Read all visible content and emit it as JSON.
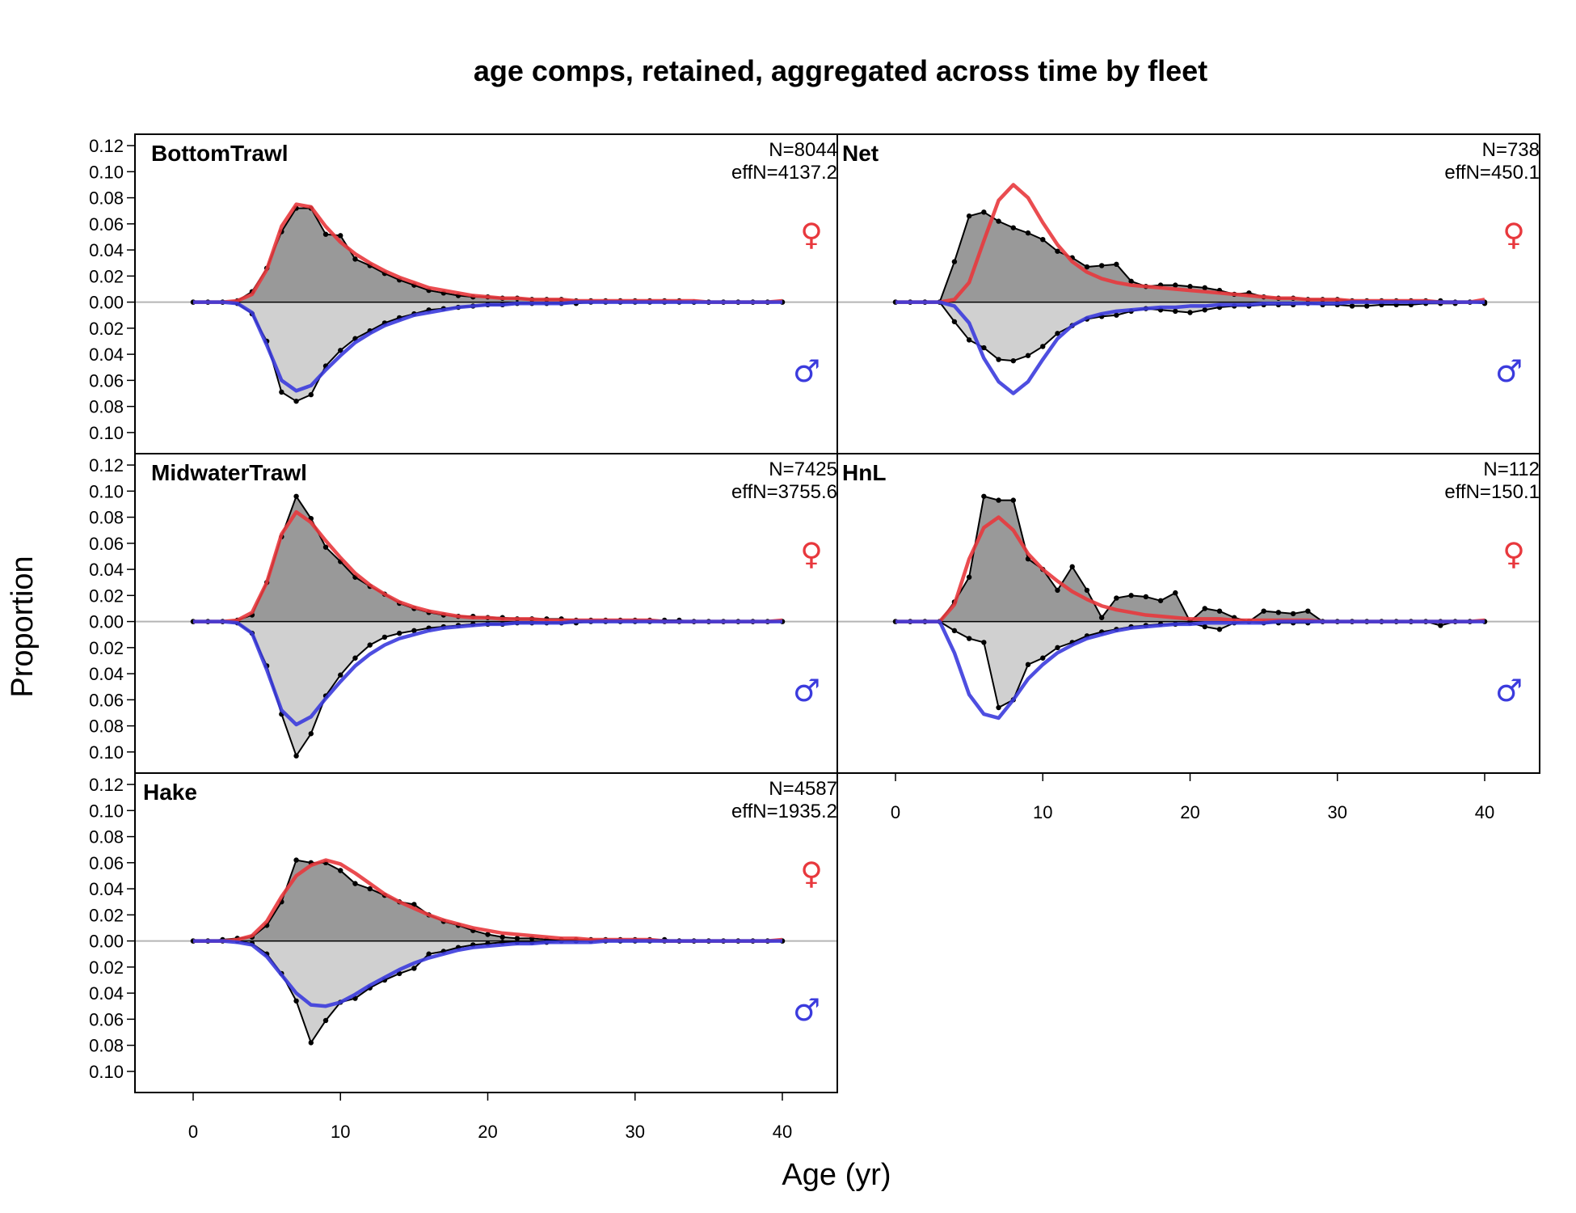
{
  "chart_data": {
    "type": "area",
    "title": "age comps, retained, aggregated across time by fleet",
    "xlabel": "Age (yr)",
    "ylabel": "Proportion",
    "xlim": [
      0,
      40
    ],
    "xticks": [
      0,
      10,
      20,
      30,
      40
    ],
    "ylim": [
      -0.11,
      0.125
    ],
    "yticks": [
      0.12,
      0.1,
      0.08,
      0.06,
      0.04,
      0.02,
      0.0,
      -0.02,
      -0.04,
      -0.06,
      -0.08,
      -0.1
    ],
    "ytick_labels": [
      "0.12",
      "0.10",
      "0.08",
      "0.06",
      "0.04",
      "0.02",
      "0.00",
      "0.02",
      "0.04",
      "0.06",
      "0.08",
      "0.10"
    ],
    "grid": false,
    "colors": {
      "female": "#e8383d",
      "male": "#3b3bdd",
      "obs_female_fill": "#999999",
      "obs_male_fill": "#d0d0d0",
      "zero_line_top": "#000000",
      "zero_line_bottom": "#b5b5b5"
    },
    "female_symbol": "♀",
    "male_symbol": "♂",
    "panels": [
      {
        "fleet": "BottomTrawl",
        "n_label": "N=8044",
        "effn_label": "effN=4137.2",
        "ages": [
          0,
          1,
          2,
          3,
          4,
          5,
          6,
          7,
          8,
          9,
          10,
          11,
          12,
          13,
          14,
          15,
          16,
          17,
          18,
          19,
          20,
          21,
          22,
          23,
          24,
          25,
          26,
          27,
          28,
          29,
          30,
          31,
          32,
          33,
          34,
          35,
          36,
          37,
          38,
          39,
          40
        ],
        "female_obs": [
          0.0,
          0.0,
          0.0,
          0.001,
          0.008,
          0.026,
          0.054,
          0.072,
          0.072,
          0.052,
          0.051,
          0.033,
          0.028,
          0.022,
          0.017,
          0.013,
          0.009,
          0.007,
          0.005,
          0.004,
          0.004,
          0.003,
          0.003,
          0.002,
          0.002,
          0.002,
          0.001,
          0.001,
          0.001,
          0.001,
          0.001,
          0.001,
          0.001,
          0.001,
          0.0,
          0.0,
          0.0,
          0.0,
          0.0,
          0.0,
          0.0
        ],
        "female_exp": [
          0.0,
          0.0,
          0.0,
          0.001,
          0.006,
          0.025,
          0.058,
          0.075,
          0.073,
          0.058,
          0.046,
          0.037,
          0.03,
          0.024,
          0.019,
          0.015,
          0.011,
          0.009,
          0.007,
          0.005,
          0.004,
          0.003,
          0.003,
          0.002,
          0.002,
          0.002,
          0.001,
          0.001,
          0.001,
          0.001,
          0.001,
          0.001,
          0.001,
          0.001,
          0.001,
          0.0,
          0.0,
          0.0,
          0.0,
          0.0,
          0.001
        ],
        "male_obs": [
          0.0,
          0.0,
          0.0,
          -0.001,
          -0.009,
          -0.03,
          -0.069,
          -0.076,
          -0.071,
          -0.049,
          -0.037,
          -0.028,
          -0.022,
          -0.016,
          -0.012,
          -0.009,
          -0.006,
          -0.005,
          -0.004,
          -0.003,
          -0.002,
          -0.002,
          -0.001,
          -0.001,
          -0.001,
          -0.001,
          -0.001,
          0.0,
          0.0,
          0.0,
          0.0,
          0.0,
          0.0,
          0.0,
          0.0,
          0.0,
          0.0,
          0.0,
          0.0,
          0.0,
          0.0
        ],
        "male_exp": [
          0.0,
          0.0,
          0.0,
          -0.001,
          -0.008,
          -0.033,
          -0.06,
          -0.068,
          -0.064,
          -0.052,
          -0.041,
          -0.031,
          -0.024,
          -0.018,
          -0.014,
          -0.01,
          -0.008,
          -0.006,
          -0.004,
          -0.003,
          -0.002,
          -0.002,
          -0.001,
          -0.001,
          -0.001,
          -0.001,
          0.0,
          0.0,
          0.0,
          0.0,
          0.0,
          0.0,
          0.0,
          0.0,
          0.0,
          0.0,
          0.0,
          0.0,
          0.0,
          0.0,
          0.0
        ]
      },
      {
        "fleet": "Net",
        "n_label": "N=738",
        "effn_label": "effN=450.1",
        "ages": [
          0,
          1,
          2,
          3,
          4,
          5,
          6,
          7,
          8,
          9,
          10,
          11,
          12,
          13,
          14,
          15,
          16,
          17,
          18,
          19,
          20,
          21,
          22,
          23,
          24,
          25,
          26,
          27,
          28,
          29,
          30,
          31,
          32,
          33,
          34,
          35,
          36,
          37,
          38,
          39,
          40
        ],
        "female_obs": [
          0.0,
          0.0,
          0.0,
          0.0,
          0.031,
          0.066,
          0.069,
          0.062,
          0.057,
          0.053,
          0.048,
          0.039,
          0.034,
          0.027,
          0.028,
          0.029,
          0.016,
          0.012,
          0.013,
          0.013,
          0.012,
          0.011,
          0.009,
          0.006,
          0.007,
          0.004,
          0.003,
          0.003,
          0.002,
          0.002,
          0.002,
          0.001,
          0.001,
          0.001,
          0.001,
          0.001,
          0.001,
          0.001,
          0.0,
          0.0,
          0.0
        ],
        "female_exp": [
          0.0,
          0.0,
          0.0,
          0.0,
          0.002,
          0.015,
          0.047,
          0.078,
          0.09,
          0.08,
          0.061,
          0.044,
          0.031,
          0.023,
          0.018,
          0.015,
          0.013,
          0.012,
          0.011,
          0.01,
          0.009,
          0.008,
          0.007,
          0.006,
          0.005,
          0.004,
          0.003,
          0.003,
          0.002,
          0.002,
          0.002,
          0.001,
          0.001,
          0.001,
          0.001,
          0.001,
          0.001,
          0.0,
          0.0,
          0.0,
          0.002
        ],
        "male_obs": [
          0.0,
          0.0,
          0.0,
          0.0,
          -0.015,
          -0.029,
          -0.035,
          -0.044,
          -0.045,
          -0.041,
          -0.034,
          -0.024,
          -0.018,
          -0.013,
          -0.011,
          -0.01,
          -0.007,
          -0.005,
          -0.006,
          -0.007,
          -0.008,
          -0.006,
          -0.004,
          -0.003,
          -0.003,
          -0.002,
          -0.002,
          -0.002,
          -0.001,
          -0.002,
          -0.002,
          -0.003,
          -0.003,
          -0.002,
          -0.002,
          -0.002,
          -0.001,
          -0.001,
          -0.001,
          0.0,
          -0.001
        ],
        "male_exp": [
          0.0,
          0.0,
          0.0,
          0.0,
          -0.003,
          -0.016,
          -0.043,
          -0.061,
          -0.07,
          -0.061,
          -0.044,
          -0.028,
          -0.018,
          -0.012,
          -0.009,
          -0.007,
          -0.006,
          -0.005,
          -0.004,
          -0.004,
          -0.003,
          -0.003,
          -0.002,
          -0.002,
          -0.002,
          -0.001,
          -0.001,
          -0.001,
          -0.001,
          -0.001,
          -0.001,
          0.0,
          0.0,
          0.0,
          0.0,
          0.0,
          0.0,
          0.0,
          0.0,
          0.0,
          0.0
        ]
      },
      {
        "fleet": "MidwaterTrawl",
        "n_label": "N=7425",
        "effn_label": "effN=3755.6",
        "ages": [
          0,
          1,
          2,
          3,
          4,
          5,
          6,
          7,
          8,
          9,
          10,
          11,
          12,
          13,
          14,
          15,
          16,
          17,
          18,
          19,
          20,
          21,
          22,
          23,
          24,
          25,
          26,
          27,
          28,
          29,
          30,
          31,
          32,
          33,
          34,
          35,
          36,
          37,
          38,
          39,
          40
        ],
        "female_obs": [
          0.0,
          0.0,
          0.0,
          0.001,
          0.005,
          0.03,
          0.065,
          0.096,
          0.079,
          0.057,
          0.046,
          0.034,
          0.027,
          0.021,
          0.014,
          0.01,
          0.007,
          0.005,
          0.004,
          0.004,
          0.003,
          0.003,
          0.002,
          0.002,
          0.002,
          0.002,
          0.001,
          0.001,
          0.001,
          0.001,
          0.001,
          0.001,
          0.001,
          0.001,
          0.0,
          0.0,
          0.0,
          0.0,
          0.0,
          0.0,
          0.0
        ],
        "female_exp": [
          0.0,
          0.0,
          0.0,
          0.001,
          0.007,
          0.03,
          0.067,
          0.084,
          0.076,
          0.062,
          0.049,
          0.037,
          0.028,
          0.021,
          0.015,
          0.011,
          0.008,
          0.006,
          0.004,
          0.003,
          0.003,
          0.002,
          0.002,
          0.002,
          0.001,
          0.001,
          0.001,
          0.001,
          0.001,
          0.001,
          0.001,
          0.001,
          0.0,
          0.0,
          0.0,
          0.0,
          0.0,
          0.0,
          0.0,
          0.0,
          0.001
        ],
        "male_obs": [
          0.0,
          0.0,
          0.0,
          -0.001,
          -0.009,
          -0.034,
          -0.071,
          -0.103,
          -0.086,
          -0.057,
          -0.041,
          -0.028,
          -0.018,
          -0.012,
          -0.009,
          -0.007,
          -0.005,
          -0.004,
          -0.003,
          -0.002,
          -0.002,
          -0.002,
          -0.001,
          -0.001,
          -0.001,
          -0.001,
          -0.001,
          0.0,
          0.0,
          0.0,
          0.0,
          0.0,
          0.0,
          0.0,
          0.0,
          0.0,
          0.0,
          0.0,
          0.0,
          0.0,
          0.0
        ],
        "male_exp": [
          0.0,
          0.0,
          0.0,
          -0.001,
          -0.009,
          -0.037,
          -0.068,
          -0.079,
          -0.073,
          -0.059,
          -0.046,
          -0.034,
          -0.025,
          -0.018,
          -0.013,
          -0.01,
          -0.007,
          -0.005,
          -0.004,
          -0.003,
          -0.002,
          -0.002,
          -0.001,
          -0.001,
          -0.001,
          -0.001,
          0.0,
          0.0,
          0.0,
          0.0,
          0.0,
          0.0,
          0.0,
          0.0,
          0.0,
          0.0,
          0.0,
          0.0,
          0.0,
          0.0,
          0.0
        ]
      },
      {
        "fleet": "HnL",
        "n_label": "N=112",
        "effn_label": "effN=150.1",
        "ages": [
          0,
          1,
          2,
          3,
          4,
          5,
          6,
          7,
          8,
          9,
          10,
          11,
          12,
          13,
          14,
          15,
          16,
          17,
          18,
          19,
          20,
          21,
          22,
          23,
          24,
          25,
          26,
          27,
          28,
          29,
          30,
          31,
          32,
          33,
          34,
          35,
          36,
          37,
          38,
          39,
          40
        ],
        "female_obs": [
          0.0,
          0.0,
          0.0,
          0.0,
          0.015,
          0.034,
          0.096,
          0.093,
          0.093,
          0.048,
          0.04,
          0.024,
          0.042,
          0.024,
          0.003,
          0.018,
          0.02,
          0.019,
          0.016,
          0.022,
          0.0,
          0.01,
          0.008,
          0.003,
          0.0,
          0.008,
          0.007,
          0.006,
          0.008,
          0.0,
          0.0,
          0.0,
          0.0,
          0.0,
          0.0,
          0.0,
          0.0,
          0.0,
          0.0,
          0.0,
          0.0
        ],
        "female_exp": [
          0.0,
          0.0,
          0.0,
          0.0,
          0.013,
          0.048,
          0.072,
          0.08,
          0.07,
          0.052,
          0.04,
          0.031,
          0.023,
          0.017,
          0.012,
          0.009,
          0.007,
          0.005,
          0.004,
          0.003,
          0.002,
          0.002,
          0.002,
          0.001,
          0.001,
          0.001,
          0.001,
          0.001,
          0.001,
          0.0,
          0.0,
          0.0,
          0.0,
          0.0,
          0.0,
          0.0,
          0.0,
          0.0,
          0.0,
          0.0,
          0.001
        ],
        "male_obs": [
          0.0,
          0.0,
          0.0,
          0.0,
          -0.007,
          -0.013,
          -0.016,
          -0.066,
          -0.06,
          -0.033,
          -0.028,
          -0.02,
          -0.016,
          -0.011,
          -0.008,
          -0.006,
          -0.004,
          -0.003,
          -0.002,
          -0.002,
          -0.001,
          -0.004,
          -0.006,
          -0.001,
          0.0,
          -0.001,
          -0.001,
          -0.001,
          -0.001,
          0.0,
          0.0,
          0.0,
          0.0,
          0.0,
          0.0,
          0.0,
          0.0,
          -0.003,
          0.0,
          0.0,
          0.0
        ],
        "male_exp": [
          0.0,
          0.0,
          0.0,
          0.0,
          -0.024,
          -0.056,
          -0.071,
          -0.074,
          -0.06,
          -0.044,
          -0.033,
          -0.024,
          -0.018,
          -0.013,
          -0.01,
          -0.007,
          -0.005,
          -0.004,
          -0.003,
          -0.002,
          -0.002,
          -0.001,
          -0.001,
          -0.001,
          -0.001,
          -0.001,
          0.0,
          0.0,
          0.0,
          0.0,
          0.0,
          0.0,
          0.0,
          0.0,
          0.0,
          0.0,
          0.0,
          0.0,
          0.0,
          0.0,
          0.0
        ]
      },
      {
        "fleet": "Hake",
        "n_label": "N=4587",
        "effn_label": "effN=1935.2",
        "ages": [
          0,
          1,
          2,
          3,
          4,
          5,
          6,
          7,
          8,
          9,
          10,
          11,
          12,
          13,
          14,
          15,
          16,
          17,
          18,
          19,
          20,
          21,
          22,
          23,
          24,
          25,
          26,
          27,
          28,
          29,
          30,
          31,
          32,
          33,
          34,
          35,
          36,
          37,
          38,
          39,
          40
        ],
        "female_obs": [
          0.0,
          0.0,
          0.001,
          0.002,
          0.003,
          0.012,
          0.03,
          0.062,
          0.06,
          0.06,
          0.054,
          0.044,
          0.04,
          0.035,
          0.03,
          0.028,
          0.02,
          0.015,
          0.012,
          0.008,
          0.005,
          0.003,
          0.002,
          0.002,
          0.001,
          0.001,
          0.001,
          0.001,
          0.001,
          0.001,
          0.001,
          0.001,
          0.001,
          0.0,
          0.0,
          0.0,
          0.0,
          0.0,
          0.0,
          0.0,
          0.0
        ],
        "female_exp": [
          0.0,
          0.0,
          0.0,
          0.001,
          0.004,
          0.015,
          0.034,
          0.05,
          0.058,
          0.062,
          0.059,
          0.052,
          0.044,
          0.036,
          0.03,
          0.025,
          0.02,
          0.016,
          0.013,
          0.01,
          0.008,
          0.006,
          0.005,
          0.004,
          0.003,
          0.002,
          0.002,
          0.001,
          0.001,
          0.001,
          0.001,
          0.001,
          0.0,
          0.0,
          0.0,
          0.0,
          0.0,
          0.0,
          0.0,
          0.0,
          0.001
        ],
        "male_obs": [
          0.0,
          0.0,
          0.0,
          0.0,
          -0.002,
          -0.01,
          -0.025,
          -0.046,
          -0.078,
          -0.061,
          -0.047,
          -0.044,
          -0.036,
          -0.03,
          -0.025,
          -0.021,
          -0.01,
          -0.008,
          -0.005,
          -0.003,
          -0.002,
          -0.001,
          -0.001,
          -0.001,
          -0.001,
          0.0,
          0.0,
          0.0,
          0.0,
          0.0,
          0.0,
          0.0,
          0.0,
          0.0,
          0.0,
          0.0,
          0.0,
          0.0,
          0.0,
          0.0,
          0.0
        ],
        "male_exp": [
          0.0,
          0.0,
          0.0,
          -0.001,
          -0.003,
          -0.012,
          -0.026,
          -0.04,
          -0.049,
          -0.05,
          -0.047,
          -0.041,
          -0.034,
          -0.028,
          -0.022,
          -0.017,
          -0.013,
          -0.01,
          -0.007,
          -0.005,
          -0.004,
          -0.003,
          -0.002,
          -0.002,
          -0.001,
          -0.001,
          -0.001,
          -0.001,
          0.0,
          0.0,
          0.0,
          0.0,
          0.0,
          0.0,
          0.0,
          0.0,
          0.0,
          0.0,
          0.0,
          0.0,
          0.0
        ]
      }
    ]
  }
}
